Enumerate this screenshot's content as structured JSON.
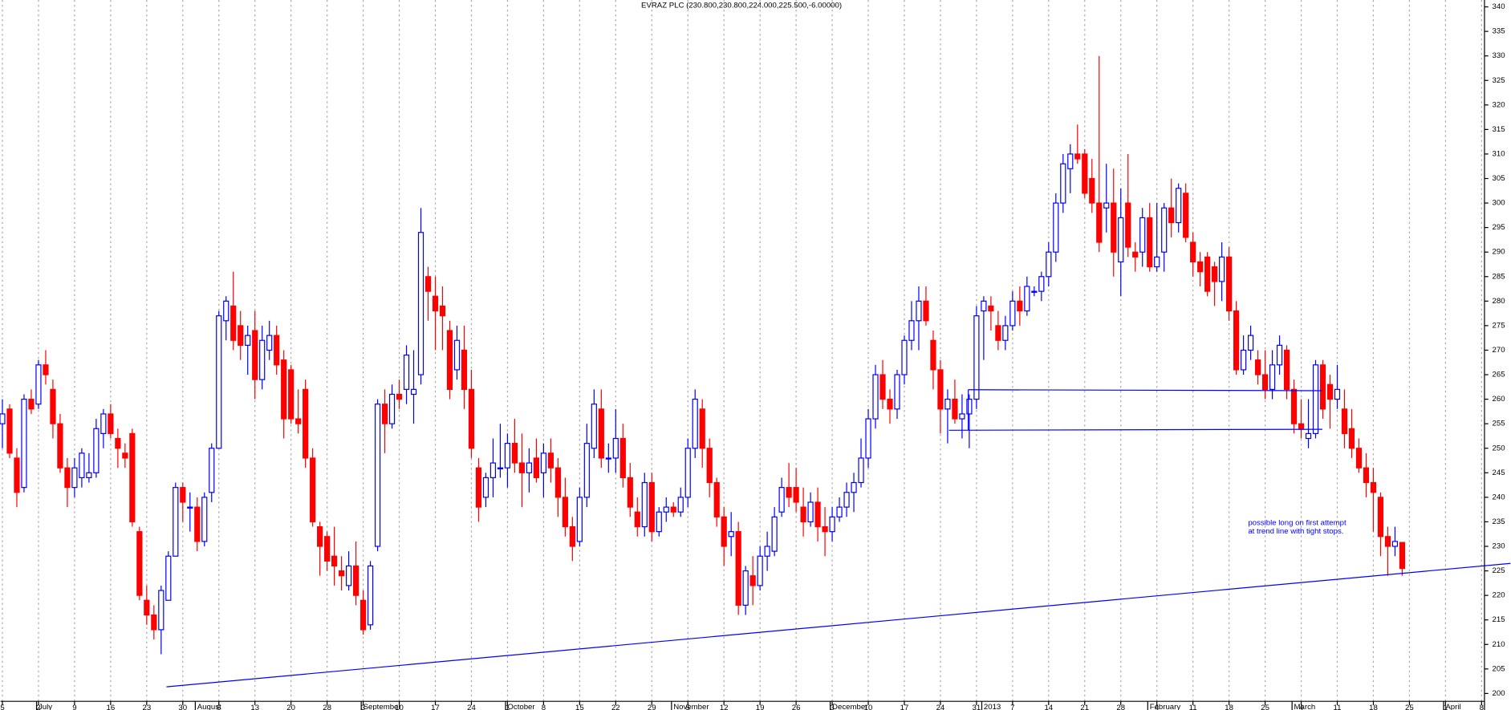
{
  "chart_data": {
    "type": "candlestick",
    "title": "EVRAZ PLC (230.800,230.800,224.000,225.500,-6.00000)",
    "annotation": [
      "possible long on first attempt",
      "at trend line with tight stops."
    ],
    "up_color": "#0000ff",
    "down_color": "#ff0000",
    "ylim": [
      198.4,
      341.4
    ],
    "yticks": [
      200,
      205,
      210,
      215,
      220,
      225,
      230,
      235,
      240,
      245,
      250,
      255,
      260,
      265,
      270,
      275,
      280,
      285,
      290,
      295,
      300,
      305,
      310,
      315,
      320,
      325,
      330,
      335,
      340
    ],
    "days": [
      {
        "d": "5",
        "o": 255,
        "h": 260,
        "l": 250,
        "c": 257
      },
      {
        "o": 258,
        "h": 259,
        "l": 248,
        "c": 249
      },
      {
        "o": 248,
        "h": 250,
        "l": 238,
        "c": 241
      },
      {
        "o": 242,
        "h": 261,
        "l": 241,
        "c": 260
      },
      {
        "o": 260,
        "h": 262,
        "l": 257,
        "c": 258
      },
      {
        "d": "2",
        "m": "July",
        "o": 259,
        "h": 268,
        "l": 258,
        "c": 267
      },
      {
        "o": 267,
        "h": 270,
        "l": 263,
        "c": 265
      },
      {
        "o": 262,
        "h": 264,
        "l": 252,
        "c": 255
      },
      {
        "o": 255,
        "h": 257,
        "l": 245,
        "c": 246
      },
      {
        "o": 246,
        "h": 248,
        "l": 238,
        "c": 242
      },
      {
        "d": "9",
        "o": 242,
        "h": 248,
        "l": 240,
        "c": 246
      },
      {
        "o": 244,
        "h": 250,
        "l": 242,
        "c": 249
      },
      {
        "o": 244,
        "h": 249,
        "l": 243,
        "c": 245
      },
      {
        "o": 245,
        "h": 256,
        "l": 244,
        "c": 254
      },
      {
        "o": 253,
        "h": 258,
        "l": 250,
        "c": 257
      },
      {
        "d": "16",
        "o": 257,
        "h": 259,
        "l": 252,
        "c": 253
      },
      {
        "o": 252,
        "h": 254,
        "l": 246,
        "c": 250
      },
      {
        "o": 249,
        "h": 251,
        "l": 246,
        "c": 248
      },
      {
        "o": 253,
        "h": 254,
        "l": 234,
        "c": 235
      },
      {
        "o": 233,
        "h": 234,
        "l": 219,
        "c": 220
      },
      {
        "d": "23",
        "o": 219,
        "h": 222,
        "l": 214,
        "c": 216
      },
      {
        "o": 216,
        "h": 218,
        "l": 211,
        "c": 213
      },
      {
        "o": 213,
        "h": 222,
        "l": 208,
        "c": 221
      },
      {
        "o": 219,
        "h": 229,
        "l": 219,
        "c": 228
      },
      {
        "o": 228,
        "h": 243,
        "l": 228,
        "c": 242
      },
      {
        "d": "30",
        "o": 242,
        "h": 243,
        "l": 235,
        "c": 239
      },
      {
        "o": 238,
        "h": 241,
        "l": 233,
        "c": 238
      },
      {
        "m": "August",
        "o": 238,
        "h": 240,
        "l": 229,
        "c": 231
      },
      {
        "o": 231,
        "h": 241,
        "l": 230,
        "c": 240
      },
      {
        "o": 241,
        "h": 251,
        "l": 239,
        "c": 250
      },
      {
        "d": "6",
        "o": 250,
        "h": 278,
        "l": 250,
        "c": 277
      },
      {
        "o": 276,
        "h": 281,
        "l": 272,
        "c": 280
      },
      {
        "o": 279,
        "h": 286,
        "l": 270,
        "c": 272
      },
      {
        "o": 275,
        "h": 278,
        "l": 268,
        "c": 271
      },
      {
        "o": 271,
        "h": 275,
        "l": 265,
        "c": 273
      },
      {
        "d": "13",
        "o": 274,
        "h": 278,
        "l": 260,
        "c": 264
      },
      {
        "o": 264,
        "h": 275,
        "l": 262,
        "c": 272
      },
      {
        "o": 270,
        "h": 276,
        "l": 268,
        "c": 273
      },
      {
        "o": 273,
        "h": 275,
        "l": 265,
        "c": 267
      },
      {
        "o": 268,
        "h": 270,
        "l": 252,
        "c": 256
      },
      {
        "d": "20",
        "o": 266,
        "h": 267,
        "l": 255,
        "c": 256
      },
      {
        "o": 256,
        "h": 262,
        "l": 253,
        "c": 255
      },
      {
        "o": 262,
        "h": 264,
        "l": 246,
        "c": 248
      },
      {
        "o": 248,
        "h": 250,
        "l": 234,
        "c": 235
      },
      {
        "o": 234,
        "h": 235,
        "l": 224,
        "c": 230
      },
      {
        "d": "28",
        "o": 232,
        "h": 233,
        "l": 225,
        "c": 227
      },
      {
        "o": 228,
        "h": 234,
        "l": 222,
        "c": 226
      },
      {
        "o": 225,
        "h": 228,
        "l": 221,
        "c": 224
      },
      {
        "o": 222,
        "h": 229,
        "l": 221,
        "c": 226
      },
      {
        "o": 226,
        "h": 231,
        "l": 218,
        "c": 220
      },
      {
        "d": "3",
        "m": "September",
        "o": 219,
        "h": 221,
        "l": 212,
        "c": 213
      },
      {
        "o": 214,
        "h": 227,
        "l": 213,
        "c": 226
      },
      {
        "o": 230,
        "h": 260,
        "l": 229,
        "c": 259
      },
      {
        "o": 259,
        "h": 262,
        "l": 249,
        "c": 255
      },
      {
        "o": 255,
        "h": 263,
        "l": 254,
        "c": 261
      },
      {
        "d": "10",
        "o": 261,
        "h": 264,
        "l": 258,
        "c": 260
      },
      {
        "o": 262,
        "h": 271,
        "l": 259,
        "c": 269
      },
      {
        "o": 261,
        "h": 270,
        "l": 255,
        "c": 262
      },
      {
        "o": 265,
        "h": 299,
        "l": 263,
        "c": 294
      },
      {
        "o": 285,
        "h": 287,
        "l": 276,
        "c": 282
      },
      {
        "d": "17",
        "o": 281,
        "h": 285,
        "l": 270,
        "c": 278
      },
      {
        "o": 279,
        "h": 283,
        "l": 270,
        "c": 277
      },
      {
        "o": 274,
        "h": 276,
        "l": 260,
        "c": 262
      },
      {
        "o": 266,
        "h": 275,
        "l": 264,
        "c": 272
      },
      {
        "o": 270,
        "h": 275,
        "l": 258,
        "c": 262
      },
      {
        "d": "24",
        "o": 262,
        "h": 266,
        "l": 248,
        "c": 250
      },
      {
        "o": 246,
        "h": 248,
        "l": 235,
        "c": 238
      },
      {
        "o": 240,
        "h": 245,
        "l": 238,
        "c": 244
      },
      {
        "o": 244,
        "h": 252,
        "l": 240,
        "c": 247
      },
      {
        "o": 246,
        "h": 255,
        "l": 244,
        "c": 246
      },
      {
        "d": "1",
        "m": "October",
        "o": 246,
        "h": 253,
        "l": 242,
        "c": 251
      },
      {
        "o": 251,
        "h": 256,
        "l": 245,
        "c": 247
      },
      {
        "o": 247,
        "h": 253,
        "l": 238,
        "c": 245
      },
      {
        "o": 245,
        "h": 250,
        "l": 241,
        "c": 247
      },
      {
        "o": 248,
        "h": 252,
        "l": 243,
        "c": 244
      },
      {
        "d": "8",
        "o": 245,
        "h": 251,
        "l": 240,
        "c": 249
      },
      {
        "o": 249,
        "h": 252,
        "l": 243,
        "c": 246
      },
      {
        "o": 246,
        "h": 248,
        "l": 236,
        "c": 240
      },
      {
        "o": 240,
        "h": 244,
        "l": 232,
        "c": 234
      },
      {
        "o": 234,
        "h": 236,
        "l": 227,
        "c": 230
      },
      {
        "d": "15",
        "o": 231,
        "h": 242,
        "l": 230,
        "c": 240
      },
      {
        "o": 240,
        "h": 255,
        "l": 238,
        "c": 251
      },
      {
        "o": 250,
        "h": 262,
        "l": 248,
        "c": 259
      },
      {
        "o": 258,
        "h": 262,
        "l": 246,
        "c": 248
      },
      {
        "o": 248,
        "h": 251,
        "l": 245,
        "c": 248
      },
      {
        "d": "22",
        "o": 248,
        "h": 258,
        "l": 245,
        "c": 252
      },
      {
        "o": 252,
        "h": 255,
        "l": 242,
        "c": 244
      },
      {
        "o": 244,
        "h": 247,
        "l": 236,
        "c": 238
      },
      {
        "o": 237,
        "h": 240,
        "l": 232,
        "c": 234
      },
      {
        "o": 234,
        "h": 245,
        "l": 232,
        "c": 243
      },
      {
        "d": "29",
        "o": 243,
        "h": 245,
        "l": 231,
        "c": 233
      },
      {
        "o": 233,
        "h": 238,
        "l": 232,
        "c": 237
      },
      {
        "o": 237,
        "h": 240,
        "l": 235,
        "c": 238
      },
      {
        "m": "November",
        "o": 238,
        "h": 239,
        "l": 236,
        "c": 237
      },
      {
        "o": 237,
        "h": 242,
        "l": 236,
        "c": 240
      },
      {
        "d": "5",
        "o": 240,
        "h": 252,
        "l": 238,
        "c": 250
      },
      {
        "o": 250,
        "h": 262,
        "l": 248,
        "c": 260
      },
      {
        "o": 258,
        "h": 260,
        "l": 246,
        "c": 250
      },
      {
        "o": 250,
        "h": 252,
        "l": 240,
        "c": 243
      },
      {
        "o": 243,
        "h": 244,
        "l": 234,
        "c": 236
      },
      {
        "d": "12",
        "o": 236,
        "h": 238,
        "l": 226,
        "c": 230
      },
      {
        "o": 232,
        "h": 237,
        "l": 228,
        "c": 233
      },
      {
        "o": 233,
        "h": 235,
        "l": 216,
        "c": 218
      },
      {
        "o": 218,
        "h": 226,
        "l": 216,
        "c": 225
      },
      {
        "o": 224,
        "h": 228,
        "l": 218,
        "c": 222
      },
      {
        "d": "19",
        "o": 222,
        "h": 230,
        "l": 221,
        "c": 228
      },
      {
        "o": 228,
        "h": 233,
        "l": 225,
        "c": 230
      },
      {
        "o": 229,
        "h": 238,
        "l": 228,
        "c": 236
      },
      {
        "o": 237,
        "h": 244,
        "l": 236,
        "c": 242
      },
      {
        "o": 242,
        "h": 247,
        "l": 238,
        "c": 240
      },
      {
        "d": "26",
        "o": 242,
        "h": 246,
        "l": 237,
        "c": 239
      },
      {
        "o": 238,
        "h": 242,
        "l": 232,
        "c": 235
      },
      {
        "o": 235,
        "h": 241,
        "l": 234,
        "c": 239
      },
      {
        "o": 239,
        "h": 242,
        "l": 231,
        "c": 234
      },
      {
        "o": 234,
        "h": 238,
        "l": 228,
        "c": 233
      },
      {
        "d": "3",
        "m": "December",
        "o": 233,
        "h": 238,
        "l": 231,
        "c": 236
      },
      {
        "o": 236,
        "h": 240,
        "l": 235,
        "c": 238
      },
      {
        "o": 238,
        "h": 243,
        "l": 236,
        "c": 241
      },
      {
        "o": 241,
        "h": 245,
        "l": 237,
        "c": 243
      },
      {
        "o": 243,
        "h": 252,
        "l": 242,
        "c": 248
      },
      {
        "d": "10",
        "o": 248,
        "h": 258,
        "l": 246,
        "c": 256
      },
      {
        "o": 256,
        "h": 267,
        "l": 254,
        "c": 265
      },
      {
        "o": 265,
        "h": 268,
        "l": 258,
        "c": 260
      },
      {
        "o": 260,
        "h": 262,
        "l": 255,
        "c": 258
      },
      {
        "o": 258,
        "h": 266,
        "l": 256,
        "c": 265
      },
      {
        "d": "17",
        "o": 265,
        "h": 273,
        "l": 263,
        "c": 272
      },
      {
        "o": 272,
        "h": 280,
        "l": 270,
        "c": 276
      },
      {
        "o": 276,
        "h": 283,
        "l": 270,
        "c": 280
      },
      {
        "o": 280,
        "h": 283,
        "l": 275,
        "c": 276
      },
      {
        "o": 272,
        "h": 274,
        "l": 262,
        "c": 266
      },
      {
        "d": "24",
        "o": 266,
        "h": 268,
        "l": 253,
        "c": 258
      },
      {
        "o": 258,
        "h": 262,
        "l": 251,
        "c": 260
      },
      {
        "o": 260,
        "h": 264,
        "l": 255,
        "c": 256
      },
      {
        "o": 256,
        "h": 261,
        "l": 252,
        "c": 257
      },
      {
        "o": 257,
        "h": 261,
        "l": 250,
        "c": 260
      },
      {
        "d": "31",
        "o": 260,
        "h": 279,
        "l": 258,
        "c": 277
      },
      {
        "m": "2013",
        "o": 278,
        "h": 281,
        "l": 268,
        "c": 280
      },
      {
        "o": 279,
        "h": 281,
        "l": 274,
        "c": 278
      },
      {
        "o": 275,
        "h": 278,
        "l": 270,
        "c": 272
      },
      {
        "o": 272,
        "h": 277,
        "l": 270,
        "c": 275
      },
      {
        "d": "7",
        "o": 275,
        "h": 282,
        "l": 274,
        "c": 280
      },
      {
        "o": 280,
        "h": 283,
        "l": 275,
        "c": 278
      },
      {
        "o": 278,
        "h": 285,
        "l": 277,
        "c": 283
      },
      {
        "o": 282,
        "h": 283,
        "l": 281,
        "c": 282
      },
      {
        "o": 282,
        "h": 286,
        "l": 280,
        "c": 285
      },
      {
        "d": "14",
        "o": 285,
        "h": 292,
        "l": 283,
        "c": 290
      },
      {
        "o": 290,
        "h": 302,
        "l": 288,
        "c": 300
      },
      {
        "o": 300,
        "h": 310,
        "l": 298,
        "c": 308
      },
      {
        "o": 307,
        "h": 312,
        "l": 302,
        "c": 310
      },
      {
        "o": 310,
        "h": 316,
        "l": 308,
        "c": 309
      },
      {
        "d": "21",
        "o": 310,
        "h": 311,
        "l": 301,
        "c": 302
      },
      {
        "o": 305,
        "h": 309,
        "l": 298,
        "c": 300
      },
      {
        "o": 300,
        "h": 330,
        "l": 290,
        "c": 292
      },
      {
        "o": 299,
        "h": 308,
        "l": 294,
        "c": 300
      },
      {
        "o": 300,
        "h": 307,
        "l": 285,
        "c": 290
      },
      {
        "d": "28",
        "o": 288,
        "h": 303,
        "l": 281,
        "c": 297
      },
      {
        "o": 300,
        "h": 310,
        "l": 289,
        "c": 291
      },
      {
        "o": 290,
        "h": 292,
        "l": 286,
        "c": 289
      },
      {
        "o": 290,
        "h": 299,
        "l": 287,
        "c": 297
      },
      {
        "m": "February",
        "o": 297,
        "h": 300,
        "l": 286,
        "c": 287
      },
      {
        "d": "4",
        "o": 287,
        "h": 300,
        "l": 286,
        "c": 289
      },
      {
        "o": 290,
        "h": 300,
        "l": 286,
        "c": 299
      },
      {
        "o": 299,
        "h": 305,
        "l": 293,
        "c": 296
      },
      {
        "o": 296,
        "h": 304,
        "l": 294,
        "c": 303
      },
      {
        "o": 302,
        "h": 304,
        "l": 292,
        "c": 293
      },
      {
        "d": "11",
        "o": 292,
        "h": 294,
        "l": 285,
        "c": 288
      },
      {
        "o": 288,
        "h": 290,
        "l": 283,
        "c": 286
      },
      {
        "o": 289,
        "h": 290,
        "l": 281,
        "c": 282
      },
      {
        "o": 287,
        "h": 288,
        "l": 279,
        "c": 284
      },
      {
        "o": 284,
        "h": 292,
        "l": 280,
        "c": 289
      },
      {
        "d": "18",
        "o": 289,
        "h": 291,
        "l": 276,
        "c": 278
      },
      {
        "o": 278,
        "h": 280,
        "l": 265,
        "c": 266
      },
      {
        "o": 266,
        "h": 273,
        "l": 265,
        "c": 270
      },
      {
        "o": 270,
        "h": 275,
        "l": 268,
        "c": 273
      },
      {
        "o": 268,
        "h": 270,
        "l": 263,
        "c": 265
      },
      {
        "d": "25",
        "o": 265,
        "h": 270,
        "l": 260,
        "c": 262
      },
      {
        "o": 262,
        "h": 270,
        "l": 260,
        "c": 267
      },
      {
        "o": 267,
        "h": 273,
        "l": 265,
        "c": 271
      },
      {
        "o": 270,
        "h": 271,
        "l": 260,
        "c": 262
      },
      {
        "m": "March",
        "o": 262,
        "h": 264,
        "l": 253,
        "c": 255
      },
      {
        "d": "4",
        "o": 255,
        "h": 260,
        "l": 252,
        "c": 254
      },
      {
        "o": 252,
        "h": 260,
        "l": 250,
        "c": 253
      },
      {
        "o": 253,
        "h": 268,
        "l": 252,
        "c": 267
      },
      {
        "o": 267,
        "h": 268,
        "l": 256,
        "c": 258
      },
      {
        "o": 263,
        "h": 265,
        "l": 254,
        "c": 260
      },
      {
        "d": "11",
        "o": 260,
        "h": 267,
        "l": 258,
        "c": 262
      },
      {
        "o": 258,
        "h": 262,
        "l": 250,
        "c": 253
      },
      {
        "o": 254,
        "h": 258,
        "l": 248,
        "c": 250
      },
      {
        "o": 250,
        "h": 252,
        "l": 245,
        "c": 246
      },
      {
        "o": 246,
        "h": 249,
        "l": 240,
        "c": 243
      },
      {
        "d": "18",
        "o": 243,
        "h": 246,
        "l": 233,
        "c": 241
      },
      {
        "o": 240,
        "h": 241,
        "l": 228,
        "c": 232
      },
      {
        "o": 232,
        "h": 234,
        "l": 224,
        "c": 230
      },
      {
        "o": 230,
        "h": 234,
        "l": 228,
        "c": 231
      },
      {
        "o": 230.8,
        "h": 230.8,
        "l": 224,
        "c": 225.5
      },
      {
        "d": "25"
      },
      null,
      null,
      null,
      null,
      {
        "d": "1",
        "m": "April"
      },
      null,
      null,
      null,
      null,
      {
        "d": "8"
      }
    ]
  }
}
